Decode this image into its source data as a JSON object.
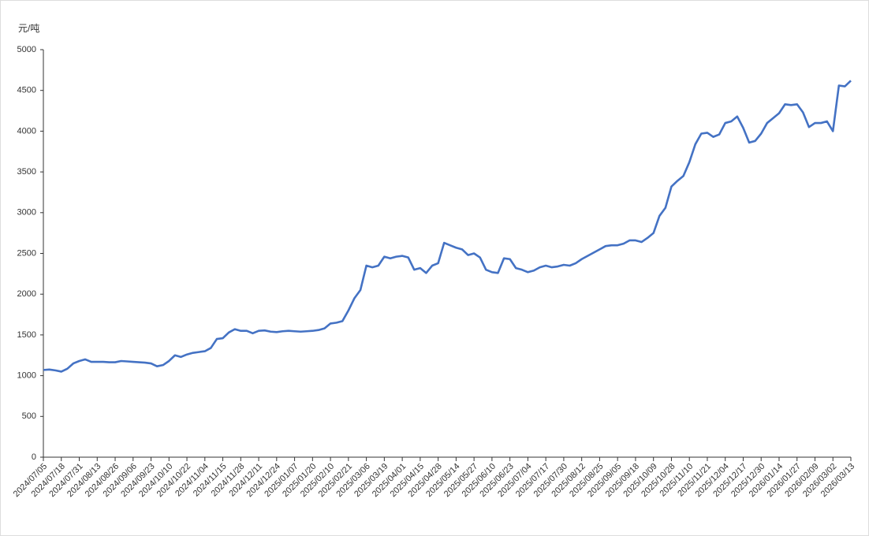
{
  "chart_data": {
    "type": "line",
    "y_label": "元/吨",
    "categories": [
      "2024/07/05",
      null,
      null,
      "2024/07/18",
      null,
      null,
      "2024/07/31",
      null,
      null,
      "2024/08/13",
      null,
      null,
      "2024/08/26",
      null,
      null,
      "2024/09/06",
      null,
      null,
      "2024/09/23",
      null,
      null,
      "2024/10/10",
      null,
      null,
      "2024/10/22",
      null,
      null,
      "2024/11/04",
      null,
      null,
      "2024/11/15",
      null,
      null,
      "2024/11/28",
      null,
      null,
      "2024/12/11",
      null,
      null,
      "2024/12/24",
      null,
      null,
      "2025/01/07",
      null,
      null,
      "2025/01/20",
      null,
      null,
      "2025/02/10",
      null,
      null,
      "2025/02/21",
      null,
      null,
      "2025/03/06",
      null,
      null,
      "2025/03/19",
      null,
      null,
      "2025/04/01",
      null,
      null,
      "2025/04/15",
      null,
      null,
      "2025/04/28",
      null,
      null,
      "2025/05/14",
      null,
      null,
      "2025/05/27",
      null,
      null,
      "2025/06/10",
      null,
      null,
      "2025/06/23",
      null,
      null,
      "2025/07/04",
      null,
      null,
      "2025/07/17",
      null,
      null,
      "2025/07/30",
      null,
      null,
      "2025/08/12",
      null,
      null,
      "2025/08/25",
      null,
      null,
      "2025/09/05",
      null,
      null,
      "2025/09/18",
      null,
      null,
      "2025/10/09",
      null,
      null,
      "2025/10/28",
      null,
      null,
      "2025/11/10",
      null,
      null,
      "2025/11/21",
      null,
      null,
      "2025/12/04",
      null,
      null,
      "2025/12/17",
      null,
      null,
      "2025/12/30",
      null,
      null,
      "2026/01/14",
      null,
      null,
      "2026/01/27",
      null,
      null,
      "2026/02/09",
      null,
      null,
      "2026/03/02",
      null,
      null,
      "2026/03/13"
    ],
    "values": [
      1070,
      1075,
      1065,
      1050,
      1085,
      1150,
      1180,
      1200,
      1170,
      1170,
      1170,
      1165,
      1165,
      1180,
      1175,
      1170,
      1165,
      1160,
      1150,
      1115,
      1130,
      1180,
      1250,
      1230,
      1260,
      1280,
      1290,
      1300,
      1340,
      1450,
      1460,
      1530,
      1570,
      1550,
      1550,
      1520,
      1550,
      1555,
      1540,
      1535,
      1545,
      1550,
      1545,
      1540,
      1545,
      1550,
      1560,
      1580,
      1640,
      1650,
      1670,
      1800,
      1950,
      2050,
      2350,
      2330,
      2350,
      2460,
      2440,
      2460,
      2470,
      2450,
      2300,
      2320,
      2260,
      2350,
      2380,
      2630,
      2600,
      2570,
      2550,
      2480,
      2500,
      2450,
      2300,
      2270,
      2260,
      2440,
      2430,
      2320,
      2300,
      2270,
      2290,
      2330,
      2350,
      2330,
      2340,
      2360,
      2350,
      2380,
      2430,
      2470,
      2510,
      2550,
      2590,
      2600,
      2600,
      2620,
      2660,
      2660,
      2640,
      2690,
      2750,
      2960,
      3060,
      3320,
      3390,
      3450,
      3620,
      3840,
      3970,
      3980,
      3930,
      3960,
      4100,
      4120,
      4180,
      4040,
      3860,
      3880,
      3970,
      4100,
      4160,
      4220,
      4330,
      4320,
      4330,
      4230,
      4050,
      4100,
      4100,
      4120,
      4000,
      4560,
      4550,
      4620
    ],
    "color": "#4472c4",
    "ylim": [
      0,
      5000
    ],
    "yticks": [
      0,
      500,
      1000,
      1500,
      2000,
      2500,
      3000,
      3500,
      4000,
      4500,
      5000
    ]
  }
}
